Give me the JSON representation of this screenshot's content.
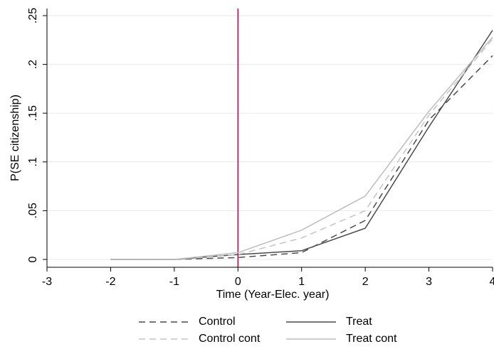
{
  "chart_data": {
    "type": "line",
    "title": "",
    "xlabel": "Time (Year-Elec. year)",
    "ylabel": "P(SE citizenship)",
    "xlim": [
      -3,
      4
    ],
    "ylim": [
      0,
      0.25
    ],
    "x_ticks": [
      -3,
      -2,
      -1,
      0,
      1,
      2,
      3,
      4
    ],
    "x_tick_labels": [
      "-3",
      "-2",
      "-1",
      "0",
      "1",
      "2",
      "3",
      "4"
    ],
    "y_ticks": [
      0,
      0.05,
      0.1,
      0.15,
      0.2,
      0.25
    ],
    "y_tick_labels": [
      "0",
      ".05",
      ".1",
      ".15",
      ".2",
      ".25"
    ],
    "grid": true,
    "reference_line": {
      "x": 0,
      "color": "#b0124e"
    },
    "x": [
      -2,
      -1,
      0,
      1,
      2,
      3,
      4
    ],
    "series": [
      {
        "name": "Control",
        "values": [
          0.0,
          0.0,
          0.002,
          0.007,
          0.04,
          0.143,
          0.209
        ],
        "color": "#4a4a4a",
        "dash": "dashed"
      },
      {
        "name": "Treat",
        "values": [
          0.0,
          0.0,
          0.005,
          0.009,
          0.032,
          0.136,
          0.235
        ],
        "color": "#4a4a4a",
        "dash": "solid"
      },
      {
        "name": "Control cont",
        "values": [
          0.0,
          0.0,
          0.005,
          0.022,
          0.05,
          0.148,
          0.226
        ],
        "color": "#c4c4c4",
        "dash": "dashed"
      },
      {
        "name": "Treat cont",
        "values": [
          0.0,
          0.0,
          0.007,
          0.03,
          0.065,
          0.152,
          0.228
        ],
        "color": "#bdbdbd",
        "dash": "solid"
      }
    ],
    "legend": {
      "placement": "bottom",
      "columns": 2
    }
  }
}
